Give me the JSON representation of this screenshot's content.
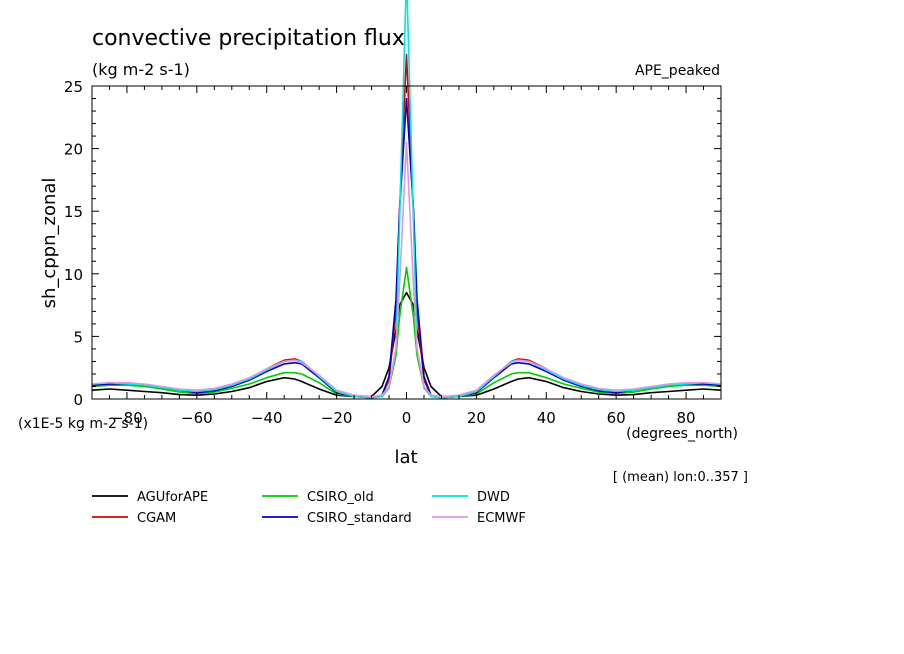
{
  "chart_data": {
    "type": "line",
    "title": "convective precipitation flux",
    "units": "(kg m-2 s-1)",
    "experiment": "APE_peaked",
    "xlabel": "lat",
    "xunits": "(degrees_north)",
    "ylabel": "sh_cppn_zonal",
    "yscale_note": "(x1E-5 kg m-2 s-1)",
    "footnote": "[ (mean) lon:0..357 ]",
    "xlim": [
      -90,
      90
    ],
    "ylim": [
      0,
      25
    ],
    "x_ticks": [
      -80,
      -60,
      -40,
      -20,
      0,
      20,
      40,
      60,
      80
    ],
    "y_ticks": [
      0,
      5,
      10,
      15,
      20,
      25
    ],
    "grid": false,
    "legend_position": "bottom",
    "x": [
      -90,
      -85,
      -80,
      -75,
      -70,
      -65,
      -60,
      -55,
      -50,
      -45,
      -40,
      -35,
      -32,
      -30,
      -25,
      -20,
      -15,
      -10,
      -7,
      -5,
      -3,
      -2,
      0,
      2,
      3,
      5,
      7,
      10,
      15,
      20,
      25,
      30,
      32,
      35,
      40,
      45,
      50,
      55,
      60,
      65,
      70,
      75,
      80,
      85,
      90
    ],
    "series": [
      {
        "name": "AGUforAPE",
        "color": "#000000",
        "values": [
          0.7,
          0.8,
          0.7,
          0.6,
          0.5,
          0.35,
          0.3,
          0.4,
          0.6,
          0.9,
          1.4,
          1.7,
          1.6,
          1.4,
          0.8,
          0.3,
          0.2,
          0.2,
          1.0,
          2.5,
          5.5,
          7.5,
          8.5,
          7.5,
          5.5,
          2.5,
          1.0,
          0.2,
          0.2,
          0.3,
          0.8,
          1.4,
          1.6,
          1.7,
          1.4,
          0.9,
          0.6,
          0.4,
          0.3,
          0.35,
          0.5,
          0.6,
          0.7,
          0.8,
          0.7
        ]
      },
      {
        "name": "CGAM",
        "color": "#e00000",
        "values": [
          1.1,
          1.2,
          1.2,
          1.1,
          0.9,
          0.7,
          0.6,
          0.75,
          1.1,
          1.6,
          2.4,
          3.1,
          3.2,
          3.0,
          1.8,
          0.6,
          0.2,
          0.1,
          0.3,
          1.5,
          7.0,
          15.0,
          27.5,
          15.0,
          7.0,
          1.5,
          0.3,
          0.1,
          0.2,
          0.6,
          1.8,
          3.0,
          3.2,
          3.1,
          2.4,
          1.6,
          1.1,
          0.75,
          0.6,
          0.7,
          0.9,
          1.1,
          1.2,
          1.2,
          1.1
        ]
      },
      {
        "name": "CSIRO_old",
        "color": "#00cc00",
        "values": [
          1.0,
          1.1,
          1.1,
          1.0,
          0.8,
          0.55,
          0.45,
          0.55,
          0.85,
          1.2,
          1.7,
          2.1,
          2.1,
          2.0,
          1.3,
          0.4,
          0.2,
          0.1,
          0.2,
          0.9,
          3.5,
          6.5,
          10.5,
          6.5,
          3.5,
          0.9,
          0.2,
          0.1,
          0.2,
          0.4,
          1.3,
          2.0,
          2.1,
          2.1,
          1.7,
          1.2,
          0.85,
          0.55,
          0.45,
          0.55,
          0.8,
          1.0,
          1.1,
          1.1,
          1.0
        ]
      },
      {
        "name": "CSIRO_standard",
        "color": "#0000cc",
        "values": [
          1.1,
          1.2,
          1.2,
          1.1,
          0.9,
          0.7,
          0.5,
          0.65,
          1.0,
          1.5,
          2.2,
          2.8,
          2.9,
          2.8,
          1.7,
          0.5,
          0.2,
          0.1,
          0.3,
          1.8,
          8.0,
          15.0,
          24.0,
          15.0,
          8.0,
          1.8,
          0.3,
          0.1,
          0.2,
          0.5,
          1.7,
          2.8,
          2.9,
          2.8,
          2.2,
          1.5,
          1.0,
          0.65,
          0.5,
          0.7,
          0.9,
          1.1,
          1.2,
          1.2,
          1.1
        ]
      },
      {
        "name": "DWD",
        "color": "#00e5e5",
        "values": [
          1.2,
          1.3,
          1.2,
          1.1,
          0.9,
          0.7,
          0.6,
          0.75,
          1.1,
          1.6,
          2.3,
          3.0,
          3.1,
          3.0,
          1.8,
          0.6,
          0.2,
          0.1,
          0.2,
          1.0,
          4.0,
          14.0,
          34.0,
          14.0,
          4.0,
          1.0,
          0.2,
          0.1,
          0.2,
          0.6,
          1.8,
          3.0,
          3.1,
          3.0,
          2.3,
          1.6,
          1.1,
          0.75,
          0.6,
          0.7,
          0.9,
          1.1,
          1.2,
          1.3,
          1.2
        ]
      },
      {
        "name": "ECMWF",
        "color": "#dd99dd",
        "values": [
          1.2,
          1.3,
          1.3,
          1.2,
          1.0,
          0.8,
          0.7,
          0.85,
          1.2,
          1.7,
          2.4,
          3.0,
          3.1,
          2.9,
          1.9,
          0.7,
          0.3,
          0.2,
          0.3,
          1.0,
          4.0,
          9.0,
          20.5,
          9.0,
          4.0,
          1.0,
          0.3,
          0.2,
          0.3,
          0.7,
          1.9,
          2.9,
          3.1,
          3.0,
          2.4,
          1.7,
          1.2,
          0.85,
          0.7,
          0.8,
          1.0,
          1.2,
          1.3,
          1.3,
          1.2
        ]
      }
    ]
  }
}
